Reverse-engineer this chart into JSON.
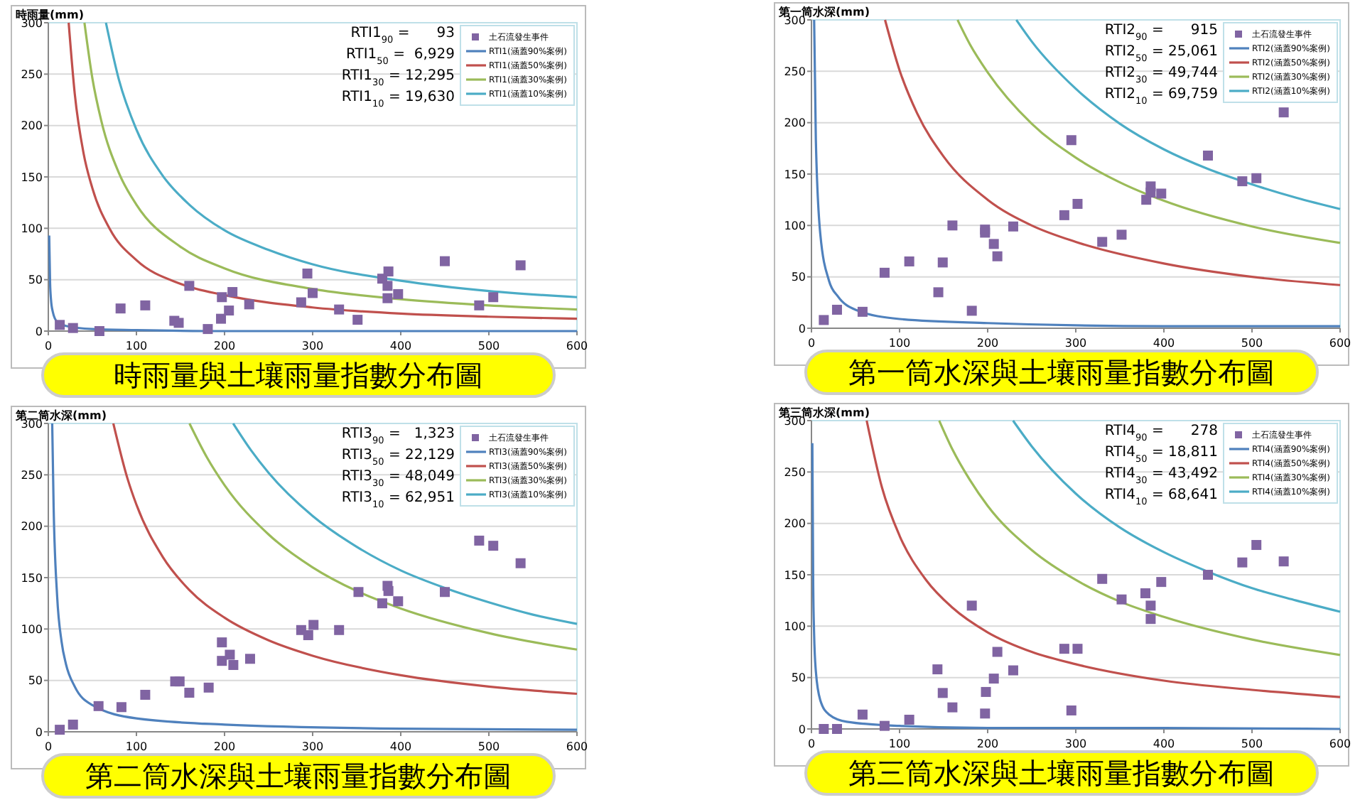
{
  "chart_data": [
    {
      "type": "scatter",
      "title": "時雨量與土壤雨量指數分布圖",
      "ylabel": "時雨量(mm)",
      "xlim": [
        0,
        600
      ],
      "ylim": [
        0,
        300
      ],
      "xticks": [
        0,
        100,
        200,
        300,
        400,
        500,
        600
      ],
      "yticks": [
        0,
        50,
        100,
        150,
        200,
        250,
        300
      ],
      "grid": "y",
      "legend": "top right",
      "annotations": [
        "RTI1$_{90}$ =      93",
        "RTI1$_{50}$ =  6,929",
        "RTI1$_{30}$ = 12,295",
        "RTI1$_{10}$ = 19,630"
      ],
      "series": [
        {
          "name": "土石流發生事件",
          "type": "scatter",
          "marker": "square",
          "color": "#8064a2",
          "x": [
            13,
            28,
            58,
            82,
            110,
            143,
            148,
            160,
            181,
            196,
            197,
            205,
            209,
            228,
            287,
            294,
            300,
            330,
            351,
            379,
            385,
            385,
            386,
            397,
            450,
            489,
            505,
            536
          ],
          "values": [
            6,
            3,
            0,
            22,
            25,
            10,
            8,
            44,
            2,
            12,
            33,
            20,
            38,
            26,
            28,
            56,
            37,
            21,
            11,
            51,
            44,
            32,
            58,
            36,
            68,
            25,
            33,
            64
          ]
        },
        {
          "name": "RTI1(涵蓋90%案例)",
          "type": "line",
          "marker": "none",
          "color": "#4f81bd",
          "x": [
            1,
            2,
            3,
            5,
            10,
            20,
            50,
            100,
            200,
            400,
            600
          ],
          "values": [
            93,
            47,
            31,
            19,
            9,
            5,
            2,
            1,
            0,
            0,
            0
          ]
        },
        {
          "name": "RTI1(涵蓋50%案例)",
          "type": "line",
          "marker": "none",
          "color": "#c0504d",
          "x": [
            23.1,
            30,
            40,
            50,
            70,
            100,
            150,
            200,
            300,
            400,
            500,
            600
          ],
          "values": [
            300,
            231,
            173,
            139,
            99,
            69,
            46,
            35,
            23,
            17,
            14,
            12
          ]
        },
        {
          "name": "RTI1(涵蓋30%案例)",
          "type": "line",
          "marker": "none",
          "color": "#9bbb59",
          "x": [
            41,
            50,
            60,
            80,
            100,
            150,
            200,
            300,
            400,
            500,
            600
          ],
          "values": [
            300,
            246,
            205,
            154,
            123,
            82,
            61,
            41,
            31,
            25,
            21
          ]
        },
        {
          "name": "RTI1(涵蓋10%案例)",
          "type": "line",
          "marker": "none",
          "color": "#4bacc6",
          "x": [
            65.4,
            80,
            100,
            130,
            160,
            200,
            250,
            300,
            400,
            500,
            600
          ],
          "values": [
            300,
            245,
            196,
            151,
            123,
            98,
            79,
            65,
            49,
            39,
            33
          ]
        }
      ]
    },
    {
      "type": "scatter",
      "title": "第一筒水深與土壤雨量指數分布圖",
      "ylabel": "第一筒水深(mm)",
      "xlim": [
        0,
        600
      ],
      "ylim": [
        0,
        300
      ],
      "xticks": [
        0,
        100,
        200,
        300,
        400,
        500,
        600
      ],
      "yticks": [
        0,
        50,
        100,
        150,
        200,
        250,
        300
      ],
      "grid": "y",
      "legend": "top right",
      "annotations": [
        "RTI2$_{90}$ =      915",
        "RTI2$_{50}$ = 25,061",
        "RTI2$_{30}$ = 49,744",
        "RTI2$_{10}$ = 69,759"
      ],
      "series": [
        {
          "name": "土石流發生事件",
          "type": "scatter",
          "marker": "square",
          "color": "#8064a2",
          "x": [
            14,
            29,
            58,
            83,
            111,
            144,
            149,
            160,
            182,
            197,
            197,
            207,
            211,
            229,
            287,
            295,
            302,
            330,
            352,
            380,
            385,
            385,
            397,
            450,
            489,
            505,
            536
          ],
          "values": [
            8,
            18,
            16,
            54,
            65,
            35,
            64,
            100,
            17,
            96,
            93,
            82,
            70,
            99,
            110,
            183,
            121,
            84,
            91,
            125,
            138,
            132,
            131,
            168,
            143,
            146,
            210
          ]
        },
        {
          "name": "RTI2(涵蓋90%案例)",
          "type": "line",
          "marker": "none",
          "color": "#4f81bd",
          "x": [
            3.05,
            5,
            10,
            20,
            30,
            50,
            100,
            200,
            400,
            600
          ],
          "values": [
            300,
            183,
            92,
            46,
            31,
            18,
            9,
            5,
            2,
            2
          ]
        },
        {
          "name": "RTI2(涵蓋50%案例)",
          "type": "line",
          "marker": "none",
          "color": "#c0504d",
          "x": [
            83.5,
            100,
            120,
            150,
            200,
            250,
            300,
            400,
            500,
            600
          ],
          "values": [
            300,
            251,
            209,
            167,
            125,
            100,
            84,
            63,
            50,
            42
          ]
        },
        {
          "name": "RTI2(涵蓋30%案例)",
          "type": "line",
          "marker": "none",
          "color": "#9bbb59",
          "x": [
            165.8,
            180,
            200,
            250,
            300,
            350,
            400,
            500,
            600
          ],
          "values": [
            300,
            276,
            249,
            199,
            166,
            142,
            124,
            99,
            83
          ]
        },
        {
          "name": "RTI2(涵蓋10%案例)",
          "type": "line",
          "marker": "none",
          "color": "#4bacc6",
          "x": [
            232.5,
            250,
            300,
            350,
            400,
            450,
            500,
            550,
            600
          ],
          "values": [
            300,
            279,
            233,
            199,
            174,
            155,
            140,
            127,
            116
          ]
        }
      ]
    },
    {
      "type": "scatter",
      "title": "第二筒水深與土壤雨量指數分布圖",
      "ylabel": "第二筒水深(mm)",
      "xlim": [
        0,
        600
      ],
      "ylim": [
        0,
        300
      ],
      "xticks": [
        0,
        100,
        200,
        300,
        400,
        500,
        600
      ],
      "yticks": [
        0,
        50,
        100,
        150,
        200,
        250,
        300
      ],
      "grid": "y",
      "legend": "top right",
      "annotations": [
        "RTI3$_{90}$ =   1,323",
        "RTI3$_{50}$ = 22,129",
        "RTI3$_{30}$ = 48,049",
        "RTI3$_{10}$ = 62,951"
      ],
      "series": [
        {
          "name": "土石流發生事件",
          "type": "scatter",
          "marker": "square",
          "color": "#8064a2",
          "x": [
            13,
            28,
            57,
            83,
            110,
            144,
            149,
            160,
            182,
            197,
            197,
            206,
            210,
            229,
            287,
            295,
            301,
            330,
            352,
            379,
            385,
            386,
            397,
            450,
            489,
            505,
            536
          ],
          "values": [
            2,
            7,
            25,
            24,
            36,
            49,
            49,
            38,
            43,
            87,
            69,
            75,
            65,
            71,
            99,
            94,
            104,
            99,
            136,
            125,
            142,
            137,
            127,
            136,
            186,
            181,
            164
          ]
        },
        {
          "name": "RTI3(涵蓋90%案例)",
          "type": "line",
          "marker": "none",
          "color": "#4f81bd",
          "x": [
            4.41,
            6,
            10,
            15,
            20,
            30,
            50,
            100,
            200,
            400,
            600
          ],
          "values": [
            300,
            220,
            132,
            88,
            66,
            44,
            26,
            13,
            7,
            3,
            2
          ]
        },
        {
          "name": "RTI3(涵蓋50%案例)",
          "type": "line",
          "marker": "none",
          "color": "#c0504d",
          "x": [
            73.8,
            90,
            100,
            130,
            160,
            200,
            250,
            300,
            400,
            500,
            600
          ],
          "values": [
            300,
            246,
            221,
            170,
            138,
            111,
            89,
            74,
            55,
            44,
            37
          ]
        },
        {
          "name": "RTI3(涵蓋30%案例)",
          "type": "line",
          "marker": "none",
          "color": "#9bbb59",
          "x": [
            160.2,
            180,
            200,
            250,
            300,
            350,
            400,
            500,
            600
          ],
          "values": [
            300,
            267,
            240,
            192,
            160,
            137,
            120,
            96,
            80
          ]
        },
        {
          "name": "RTI3(涵蓋10%案例)",
          "type": "line",
          "marker": "none",
          "color": "#4bacc6",
          "x": [
            209.8,
            230,
            250,
            300,
            350,
            400,
            450,
            500,
            550,
            600
          ],
          "values": [
            300,
            274,
            252,
            210,
            180,
            157,
            140,
            126,
            114,
            105
          ]
        }
      ]
    },
    {
      "type": "scatter",
      "title": "第三筒水深與土壤雨量指數分布圖",
      "ylabel": "第三筒水深(mm)",
      "xlim": [
        0,
        600
      ],
      "ylim": [
        0,
        300
      ],
      "xticks": [
        0,
        100,
        200,
        300,
        400,
        500,
        600
      ],
      "yticks": [
        0,
        50,
        100,
        150,
        200,
        250,
        300
      ],
      "grid": "y",
      "legend": "top right",
      "annotations": [
        "RTI4$_{90}$ =      278",
        "RTI4$_{50}$ = 18,811",
        "RTI4$_{30}$ = 43,492",
        "RTI4$_{10}$ = 68,641"
      ],
      "series": [
        {
          "name": "土石流發生事件",
          "type": "scatter",
          "marker": "square",
          "color": "#8064a2",
          "x": [
            14,
            29,
            58,
            83,
            111,
            143,
            149,
            160,
            182,
            198,
            197,
            207,
            211,
            229,
            287,
            295,
            302,
            330,
            352,
            379,
            385,
            385,
            397,
            450,
            489,
            505,
            536
          ],
          "values": [
            0,
            0,
            14,
            3,
            9,
            58,
            35,
            21,
            120,
            36,
            15,
            49,
            75,
            57,
            78,
            18,
            78,
            146,
            126,
            132,
            120,
            107,
            143,
            150,
            162,
            179,
            163
          ]
        },
        {
          "name": "RTI4(涵蓋90%案例)",
          "type": "line",
          "marker": "none",
          "color": "#4f81bd",
          "x": [
            1,
            2,
            3,
            5,
            10,
            20,
            40,
            100,
            200,
            400,
            600
          ],
          "values": [
            278,
            139,
            93,
            56,
            28,
            14,
            7,
            3,
            1,
            1,
            0
          ]
        },
        {
          "name": "RTI4(涵蓋50%案例)",
          "type": "line",
          "marker": "none",
          "color": "#c0504d",
          "x": [
            62.7,
            80,
            100,
            130,
            160,
            200,
            250,
            300,
            400,
            500,
            600
          ],
          "values": [
            300,
            235,
            188,
            145,
            118,
            94,
            75,
            63,
            47,
            38,
            31
          ]
        },
        {
          "name": "RTI4(涵蓋30%案例)",
          "type": "line",
          "marker": "none",
          "color": "#9bbb59",
          "x": [
            145,
            160,
            180,
            200,
            250,
            300,
            350,
            400,
            500,
            600
          ],
          "values": [
            300,
            272,
            242,
            217,
            174,
            145,
            124,
            109,
            87,
            72
          ]
        },
        {
          "name": "RTI4(涵蓋10%案例)",
          "type": "line",
          "marker": "none",
          "color": "#4bacc6",
          "x": [
            228.8,
            250,
            300,
            350,
            400,
            450,
            500,
            550,
            600
          ],
          "values": [
            300,
            275,
            229,
            196,
            172,
            153,
            137,
            125,
            114
          ]
        }
      ]
    }
  ]
}
